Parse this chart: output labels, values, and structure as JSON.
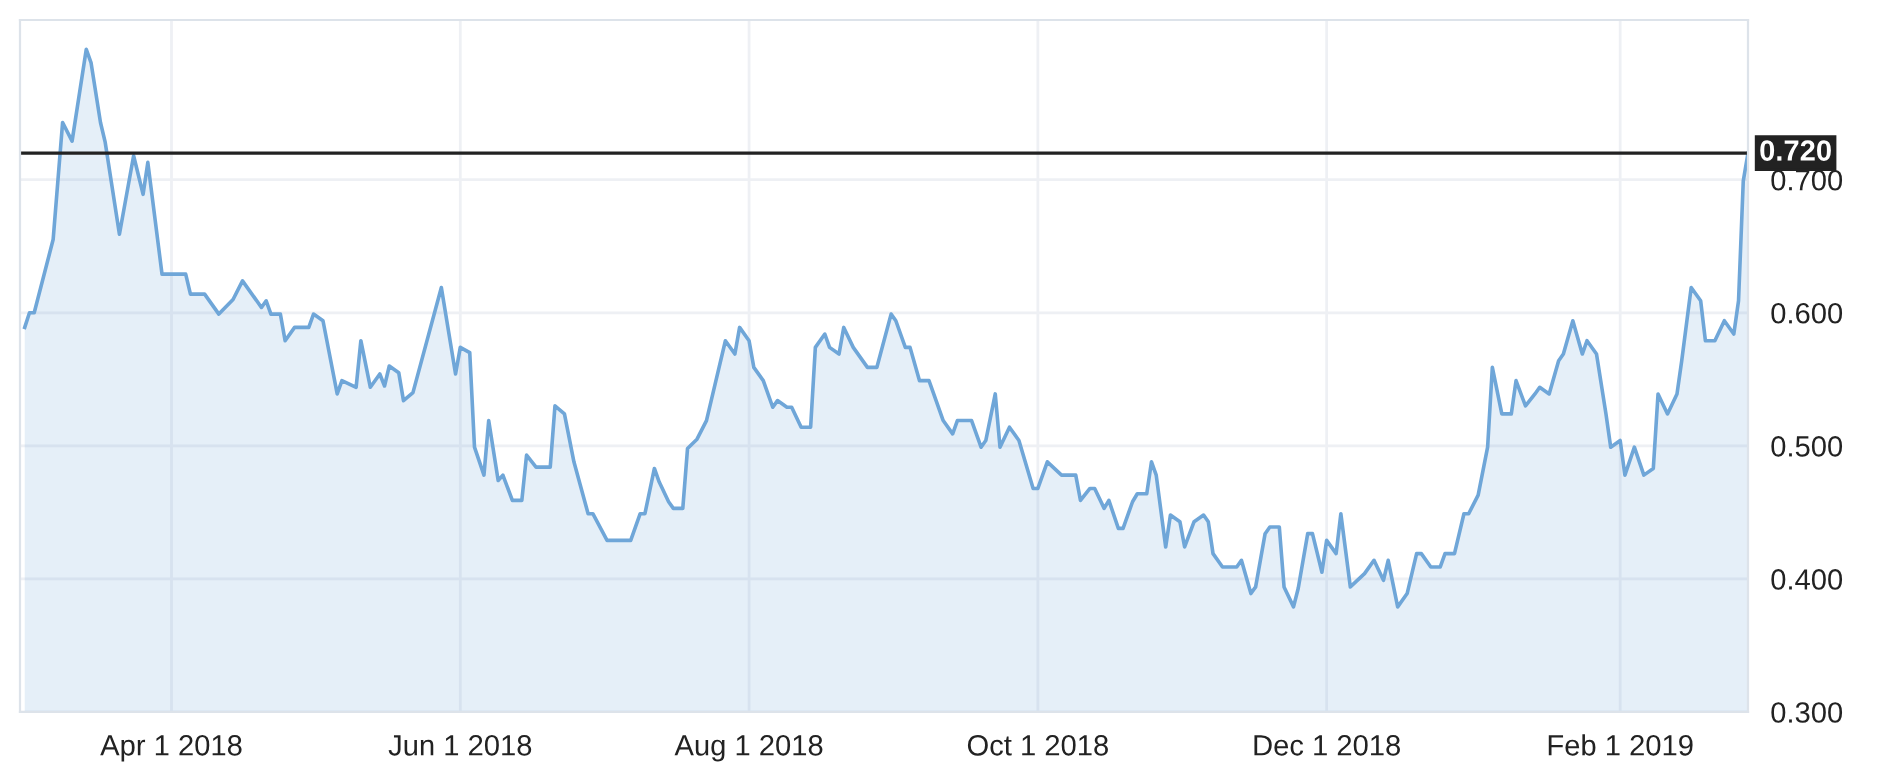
{
  "chart_data": {
    "type": "area",
    "x": [
      "2018-03-01",
      "2018-03-02",
      "2018-03-03",
      "2018-03-07",
      "2018-03-09",
      "2018-03-11",
      "2018-03-14",
      "2018-03-15",
      "2018-03-17",
      "2018-03-18",
      "2018-03-21",
      "2018-03-24",
      "2018-03-26",
      "2018-03-27",
      "2018-03-30",
      "2018-04-04",
      "2018-04-05",
      "2018-04-08",
      "2018-04-11",
      "2018-04-14",
      "2018-04-16",
      "2018-04-20",
      "2018-04-21",
      "2018-04-22",
      "2018-04-24",
      "2018-04-25",
      "2018-04-27",
      "2018-04-30",
      "2018-05-01",
      "2018-05-03",
      "2018-05-06",
      "2018-05-07",
      "2018-05-10",
      "2018-05-11",
      "2018-05-13",
      "2018-05-15",
      "2018-05-16",
      "2018-05-17",
      "2018-05-19",
      "2018-05-20",
      "2018-05-22",
      "2018-05-28",
      "2018-05-31",
      "2018-06-01",
      "2018-06-03",
      "2018-06-04",
      "2018-06-06",
      "2018-06-07",
      "2018-06-09",
      "2018-06-10",
      "2018-06-12",
      "2018-06-14",
      "2018-06-15",
      "2018-06-17",
      "2018-06-20",
      "2018-06-21",
      "2018-06-23",
      "2018-06-25",
      "2018-06-28",
      "2018-06-29",
      "2018-07-02",
      "2018-07-04",
      "2018-07-07",
      "2018-07-09",
      "2018-07-10",
      "2018-07-12",
      "2018-07-13",
      "2018-07-15",
      "2018-07-16",
      "2018-07-18",
      "2018-07-19",
      "2018-07-21",
      "2018-07-23",
      "2018-07-25",
      "2018-07-27",
      "2018-07-29",
      "2018-07-30",
      "2018-08-01",
      "2018-08-02",
      "2018-08-04",
      "2018-08-06",
      "2018-08-07",
      "2018-08-09",
      "2018-08-10",
      "2018-08-12",
      "2018-08-14",
      "2018-08-15",
      "2018-08-17",
      "2018-08-18",
      "2018-08-20",
      "2018-08-21",
      "2018-08-23",
      "2018-08-26",
      "2018-08-28",
      "2018-08-31",
      "2018-09-01",
      "2018-09-03",
      "2018-09-04",
      "2018-09-06",
      "2018-09-08",
      "2018-09-09",
      "2018-09-11",
      "2018-09-13",
      "2018-09-14",
      "2018-09-17",
      "2018-09-19",
      "2018-09-20",
      "2018-09-22",
      "2018-09-23",
      "2018-09-25",
      "2018-09-27",
      "2018-09-30",
      "2018-10-01",
      "2018-10-03",
      "2018-10-06",
      "2018-10-09",
      "2018-10-10",
      "2018-10-12",
      "2018-10-13",
      "2018-10-15",
      "2018-10-16",
      "2018-10-18",
      "2018-10-19",
      "2018-10-21",
      "2018-10-22",
      "2018-10-24",
      "2018-10-25",
      "2018-10-26",
      "2018-10-28",
      "2018-10-29",
      "2018-10-31",
      "2018-11-01",
      "2018-11-03",
      "2018-11-05",
      "2018-11-06",
      "2018-11-07",
      "2018-11-09",
      "2018-11-12",
      "2018-11-13",
      "2018-11-15",
      "2018-11-16",
      "2018-11-18",
      "2018-11-19",
      "2018-11-21",
      "2018-11-22",
      "2018-11-24",
      "2018-11-25",
      "2018-11-27",
      "2018-11-28",
      "2018-11-30",
      "2018-12-01",
      "2018-12-03",
      "2018-12-04",
      "2018-12-06",
      "2018-12-09",
      "2018-12-11",
      "2018-12-13",
      "2018-12-14",
      "2018-12-16",
      "2018-12-18",
      "2018-12-20",
      "2018-12-21",
      "2018-12-23",
      "2018-12-25",
      "2018-12-26",
      "2018-12-28",
      "2018-12-30",
      "2018-12-31",
      "2019-01-02",
      "2019-01-04",
      "2019-01-05",
      "2019-01-07",
      "2019-01-09",
      "2019-01-10",
      "2019-01-12",
      "2019-01-14",
      "2019-01-15",
      "2019-01-17",
      "2019-01-19",
      "2019-01-20",
      "2019-01-22",
      "2019-01-24",
      "2019-01-25",
      "2019-01-27",
      "2019-01-29",
      "2019-01-30",
      "2019-02-01",
      "2019-02-02",
      "2019-02-04",
      "2019-02-06",
      "2019-02-08",
      "2019-02-09",
      "2019-02-11",
      "2019-02-13",
      "2019-02-14",
      "2019-02-16",
      "2019-02-18",
      "2019-02-19",
      "2019-02-21",
      "2019-02-23",
      "2019-02-25",
      "2019-02-26",
      "2019-02-27",
      "2019-02-28"
    ],
    "series": [
      {
        "color": "#6fa6d8",
        "values": [
          0.589,
          0.6,
          0.6,
          0.655,
          0.743,
          0.729,
          0.798,
          0.788,
          0.743,
          0.728,
          0.659,
          0.718,
          0.689,
          0.713,
          0.629,
          0.629,
          0.614,
          0.614,
          0.599,
          0.61,
          0.624,
          0.604,
          0.609,
          0.599,
          0.599,
          0.579,
          0.589,
          0.589,
          0.599,
          0.594,
          0.539,
          0.549,
          0.544,
          0.579,
          0.544,
          0.554,
          0.545,
          0.56,
          0.555,
          0.534,
          0.54,
          0.619,
          0.554,
          0.574,
          0.57,
          0.499,
          0.478,
          0.519,
          0.474,
          0.478,
          0.459,
          0.459,
          0.493,
          0.484,
          0.484,
          0.53,
          0.524,
          0.488,
          0.449,
          0.449,
          0.429,
          0.429,
          0.429,
          0.449,
          0.449,
          0.483,
          0.473,
          0.458,
          0.453,
          0.453,
          0.498,
          0.505,
          0.519,
          0.549,
          0.579,
          0.569,
          0.589,
          0.579,
          0.559,
          0.549,
          0.529,
          0.534,
          0.529,
          0.529,
          0.514,
          0.514,
          0.574,
          0.584,
          0.574,
          0.569,
          0.589,
          0.574,
          0.559,
          0.559,
          0.599,
          0.594,
          0.574,
          0.574,
          0.549,
          0.549,
          0.539,
          0.519,
          0.509,
          0.519,
          0.519,
          0.499,
          0.504,
          0.539,
          0.499,
          0.514,
          0.504,
          0.468,
          0.468,
          0.488,
          0.478,
          0.478,
          0.459,
          0.468,
          0.468,
          0.453,
          0.459,
          0.438,
          0.438,
          0.458,
          0.464,
          0.464,
          0.488,
          0.478,
          0.424,
          0.448,
          0.443,
          0.424,
          0.443,
          0.448,
          0.443,
          0.419,
          0.409,
          0.409,
          0.414,
          0.389,
          0.394,
          0.434,
          0.439,
          0.439,
          0.394,
          0.379,
          0.393,
          0.434,
          0.434,
          0.405,
          0.429,
          0.419,
          0.449,
          0.394,
          0.404,
          0.414,
          0.399,
          0.414,
          0.379,
          0.389,
          0.419,
          0.419,
          0.409,
          0.409,
          0.419,
          0.419,
          0.449,
          0.449,
          0.463,
          0.499,
          0.559,
          0.524,
          0.524,
          0.549,
          0.53,
          0.539,
          0.544,
          0.539,
          0.564,
          0.569,
          0.594,
          0.569,
          0.579,
          0.569,
          0.524,
          0.499,
          0.504,
          0.478,
          0.499,
          0.478,
          0.483,
          0.539,
          0.524,
          0.539,
          0.564,
          0.619,
          0.609,
          0.579,
          0.579,
          0.594,
          0.584,
          0.609,
          0.699,
          0.72
        ]
      }
    ],
    "xlim": [
      "2018-02-28",
      "2019-02-28"
    ],
    "xticks": [
      {
        "value": "2018-04-01",
        "label": "Apr 1 2018"
      },
      {
        "value": "2018-06-01",
        "label": "Jun 1 2018"
      },
      {
        "value": "2018-08-01",
        "label": "Aug 1 2018"
      },
      {
        "value": "2018-10-01",
        "label": "Oct 1 2018"
      },
      {
        "value": "2018-12-01",
        "label": "Dec 1 2018"
      },
      {
        "value": "2019-02-01",
        "label": "Feb 1 2019"
      }
    ],
    "ylim": [
      0.3,
      0.82
    ],
    "yticks": [
      {
        "value": 0.3,
        "label": "0.300"
      },
      {
        "value": 0.4,
        "label": "0.400"
      },
      {
        "value": 0.5,
        "label": "0.500"
      },
      {
        "value": 0.6,
        "label": "0.600"
      },
      {
        "value": 0.7,
        "label": "0.700"
      }
    ],
    "ref_lines": [
      {
        "axis": "y",
        "value": 0.72,
        "label": "0.720",
        "color": "#222222"
      }
    ],
    "grid": true,
    "legend": false
  }
}
